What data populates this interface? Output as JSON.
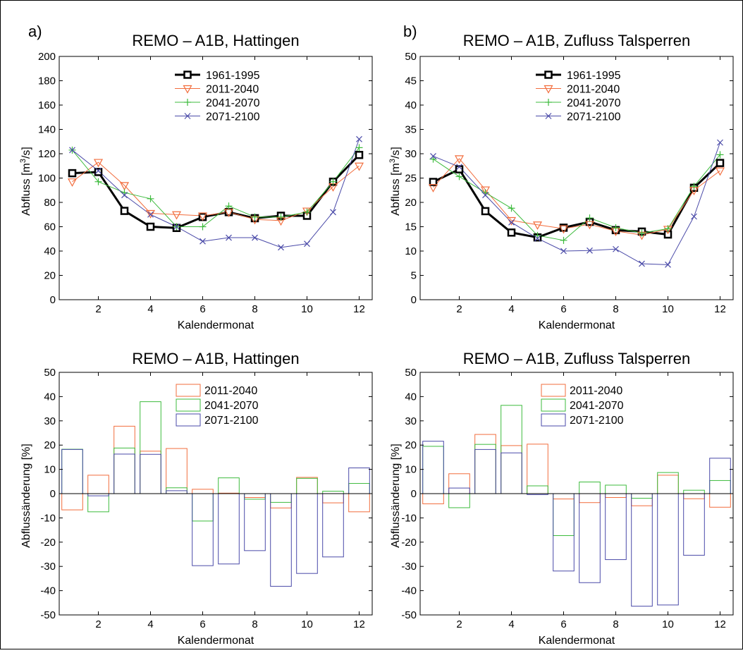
{
  "colors": {
    "baseline": "#000000",
    "p2011": "#f26d3d",
    "p2041": "#3dbb3d",
    "p2071": "#4a4aa8",
    "frame": "#000000",
    "background": "#ffffff"
  },
  "chart_data": [
    {
      "id": "a",
      "panel_label": "a)",
      "type": "line",
      "title": "REMO – A1B, Hattingen",
      "xlabel": "Kalendermonat",
      "ylabel_pre": "Abfluss [m",
      "ylabel_sup": "3",
      "ylabel_post": "/s]",
      "xlim": [
        0.5,
        12.5
      ],
      "ylim": [
        0,
        200
      ],
      "xticks": [
        2,
        4,
        6,
        8,
        10,
        12
      ],
      "yticks": [
        0,
        20,
        40,
        60,
        80,
        100,
        120,
        140,
        160,
        180,
        200
      ],
      "grid": false,
      "legend_position": "top-center",
      "x": [
        1,
        2,
        3,
        4,
        5,
        6,
        7,
        8,
        9,
        10,
        11,
        12
      ],
      "series": [
        {
          "name": "1961-1995",
          "color": "#000000",
          "marker": "square",
          "width": 3,
          "values": [
            104,
            105,
            73,
            60,
            59,
            68,
            72,
            67,
            69,
            69,
            97,
            119
          ]
        },
        {
          "name": "2011-2040",
          "color": "#f26d3d",
          "marker": "triangle-down",
          "width": 1,
          "values": [
            97,
            113,
            94,
            71,
            70,
            69,
            72,
            66,
            65,
            73,
            93,
            110
          ]
        },
        {
          "name": "2041-2070",
          "color": "#3dbb3d",
          "marker": "plus",
          "width": 1,
          "values": [
            123,
            97,
            88,
            83,
            60,
            60,
            77,
            68,
            68,
            72,
            97,
            125
          ]
        },
        {
          "name": "2071-2100",
          "color": "#4a4aa8",
          "marker": "x",
          "width": 1,
          "values": [
            123,
            106,
            86,
            70,
            60,
            48,
            51,
            51,
            43,
            46,
            72,
            132
          ]
        }
      ]
    },
    {
      "id": "b",
      "panel_label": "b)",
      "type": "line",
      "title": "REMO – A1B, Zufluss Talsperren",
      "xlabel": "Kalendermonat",
      "ylabel_pre": "Abfluss [m",
      "ylabel_sup": "3",
      "ylabel_post": "/s]",
      "xlim": [
        0.5,
        12.5
      ],
      "ylim": [
        0,
        50
      ],
      "xticks": [
        2,
        4,
        6,
        8,
        10,
        12
      ],
      "yticks": [
        0,
        5,
        10,
        15,
        20,
        25,
        30,
        35,
        40,
        45,
        50
      ],
      "grid": false,
      "legend_position": "top-center",
      "x": [
        1,
        2,
        3,
        4,
        5,
        6,
        7,
        8,
        9,
        10,
        11,
        12
      ],
      "series": [
        {
          "name": "1961-1995",
          "color": "#000000",
          "marker": "square",
          "width": 3,
          "values": [
            24.2,
            26.8,
            18.2,
            13.8,
            12.8,
            14.8,
            16.0,
            14.3,
            14.0,
            13.4,
            23.0,
            28.1
          ]
        },
        {
          "name": "2011-2040",
          "color": "#f26d3d",
          "marker": "triangle-down",
          "width": 1,
          "values": [
            23.1,
            29.0,
            22.6,
            16.3,
            15.4,
            14.6,
            15.5,
            14.1,
            13.3,
            14.5,
            22.5,
            26.5
          ]
        },
        {
          "name": "2041-2070",
          "color": "#3dbb3d",
          "marker": "plus",
          "width": 1,
          "values": [
            28.9,
            25.3,
            22.0,
            18.8,
            13.2,
            12.2,
            16.8,
            14.8,
            13.7,
            14.6,
            23.3,
            29.8
          ]
        },
        {
          "name": "2071-2100",
          "color": "#4a4aa8",
          "marker": "x",
          "width": 1,
          "values": [
            29.5,
            27.3,
            21.5,
            15.9,
            12.6,
            10.0,
            10.1,
            10.4,
            7.4,
            7.2,
            17.1,
            32.3
          ]
        }
      ]
    },
    {
      "id": "c",
      "panel_label": "",
      "type": "bar",
      "title": "REMO – A1B, Hattingen",
      "xlabel": "Kalendermonat",
      "ylabel": "Abflussänderung  [%]",
      "xlim": [
        0.5,
        12.5
      ],
      "ylim": [
        -50,
        50
      ],
      "xticks": [
        2,
        4,
        6,
        8,
        10,
        12
      ],
      "yticks": [
        -50,
        -40,
        -30,
        -20,
        -10,
        0,
        10,
        20,
        30,
        40,
        50
      ],
      "grid": false,
      "legend_position": "top-center",
      "x": [
        1,
        2,
        3,
        4,
        5,
        6,
        7,
        8,
        9,
        10,
        11,
        12
      ],
      "series": [
        {
          "name": "2011-2040",
          "color": "#f26d3d",
          "values": [
            -6.7,
            7.6,
            27.8,
            17.5,
            18.6,
            1.8,
            0.2,
            -1.6,
            -5.9,
            6.7,
            -3.8,
            -7.5
          ]
        },
        {
          "name": "2041-2070",
          "color": "#3dbb3d",
          "values": [
            18.3,
            -7.5,
            18.8,
            37.9,
            2.4,
            -11.3,
            6.5,
            -2.3,
            -3.6,
            6.3,
            1.0,
            4.2
          ]
        },
        {
          "name": "2071-2100",
          "color": "#4a4aa8",
          "values": [
            18.2,
            -0.9,
            16.3,
            16.2,
            1.2,
            -29.7,
            -29.0,
            -23.5,
            -38.2,
            -32.9,
            -26.1,
            10.6
          ]
        }
      ]
    },
    {
      "id": "d",
      "panel_label": "",
      "type": "bar",
      "title": "REMO – A1B, Zufluss Talsperren",
      "xlabel": "Kalendermonat",
      "ylabel": "Abflussänderung  [%]",
      "xlim": [
        0.5,
        12.5
      ],
      "ylim": [
        -50,
        50
      ],
      "xticks": [
        2,
        4,
        6,
        8,
        10,
        12
      ],
      "yticks": [
        -50,
        -40,
        -30,
        -20,
        -10,
        0,
        10,
        20,
        30,
        40,
        50
      ],
      "grid": false,
      "legend_position": "top-center",
      "x": [
        1,
        2,
        3,
        4,
        5,
        6,
        7,
        8,
        9,
        10,
        11,
        12
      ],
      "series": [
        {
          "name": "2011-2040",
          "color": "#f26d3d",
          "values": [
            -4.2,
            8.2,
            24.4,
            19.8,
            20.4,
            -2.2,
            -3.7,
            -1.6,
            -5.0,
            7.6,
            -2.1,
            -5.6
          ]
        },
        {
          "name": "2041-2070",
          "color": "#3dbb3d",
          "values": [
            19.5,
            -5.8,
            20.3,
            36.4,
            3.2,
            -17.3,
            4.8,
            3.5,
            -1.9,
            8.7,
            1.4,
            5.4
          ]
        },
        {
          "name": "2071-2100",
          "color": "#4a4aa8",
          "values": [
            21.6,
            2.3,
            18.2,
            16.8,
            -0.4,
            -31.9,
            -36.7,
            -27.2,
            -46.4,
            -45.9,
            -25.4,
            14.6
          ]
        }
      ]
    }
  ]
}
